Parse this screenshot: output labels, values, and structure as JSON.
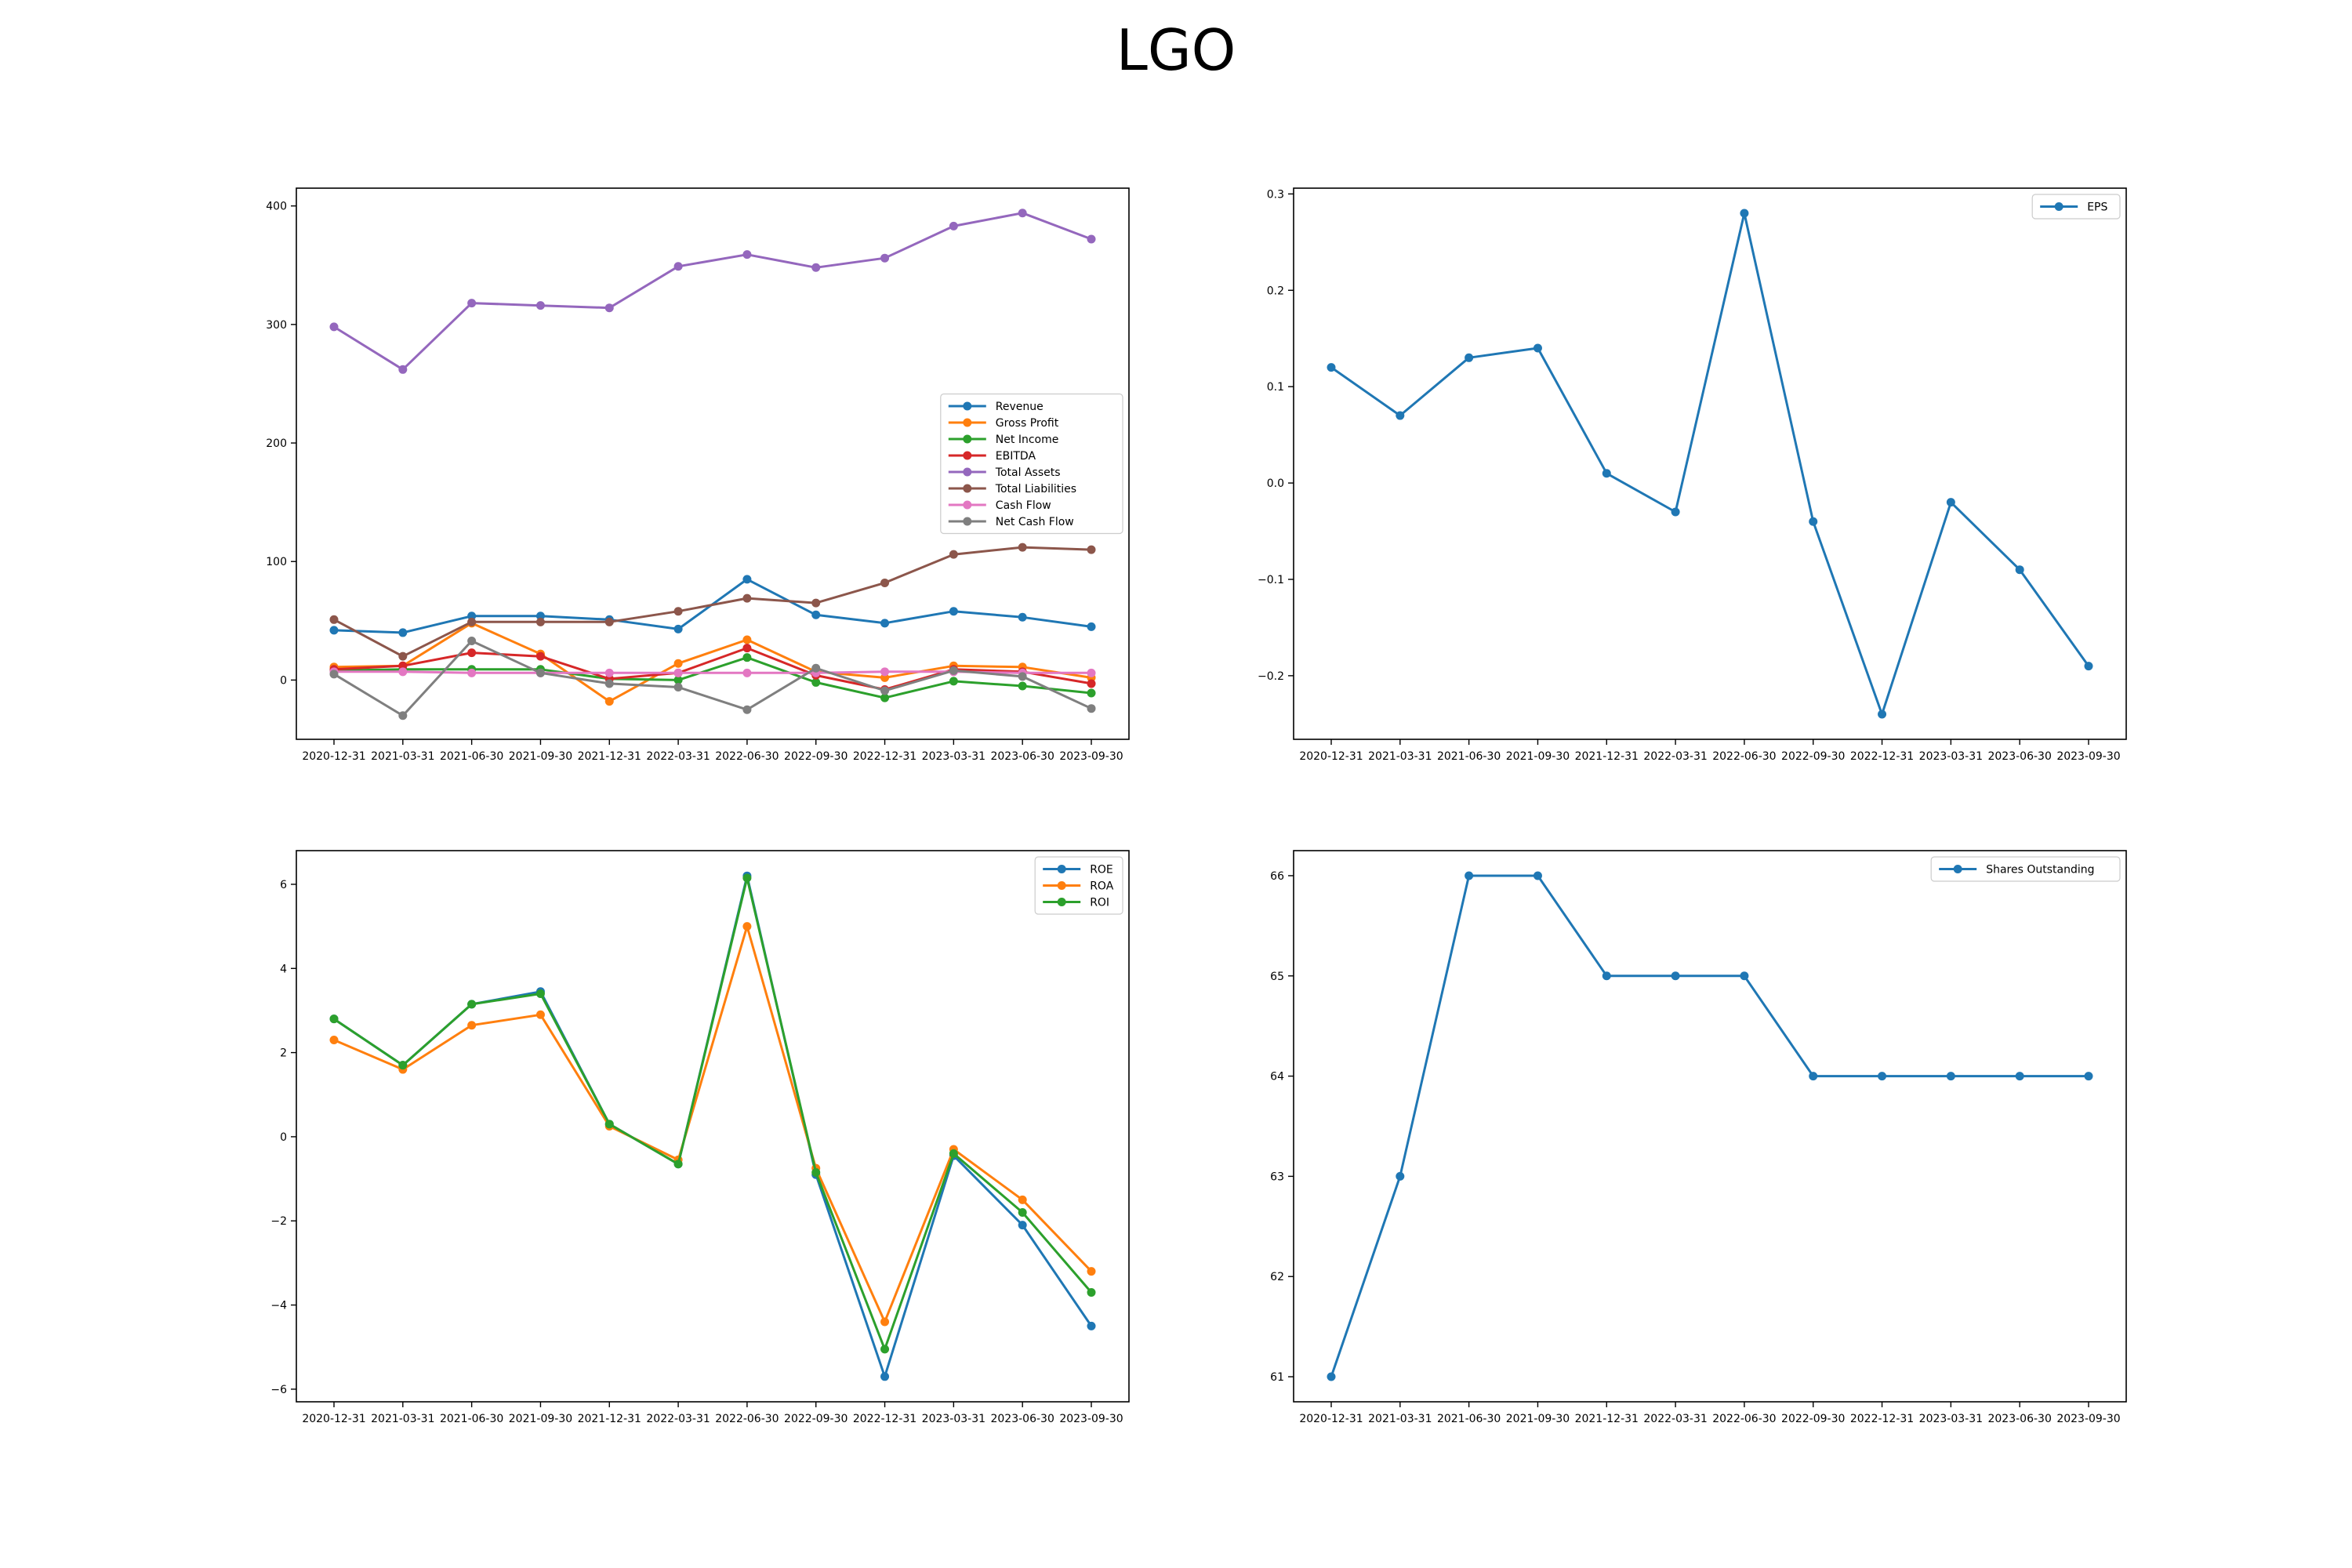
{
  "figure_title": "LGO",
  "chart_data": [
    {
      "type": "line",
      "x": [
        "2020-12-31",
        "2021-03-31",
        "2021-06-30",
        "2021-09-30",
        "2021-12-31",
        "2022-03-31",
        "2022-06-30",
        "2022-09-30",
        "2022-12-31",
        "2023-03-31",
        "2023-06-30",
        "2023-09-30"
      ],
      "ylim": [
        -50,
        415
      ],
      "yticks": [
        0,
        100,
        200,
        300,
        400
      ],
      "grid": false,
      "legend_position": "center-right",
      "series": [
        {
          "name": "Revenue",
          "color": "#1f77b4",
          "values": [
            42,
            40,
            54,
            54,
            51,
            43,
            85,
            55,
            48,
            58,
            53,
            45
          ]
        },
        {
          "name": "Gross Profit",
          "color": "#ff7f0e",
          "values": [
            11,
            12,
            48,
            22,
            -18,
            14,
            34,
            7,
            2,
            12,
            11,
            2
          ]
        },
        {
          "name": "Net Income",
          "color": "#2ca02c",
          "values": [
            8,
            9,
            9,
            9,
            1,
            0,
            19,
            -2,
            -15,
            -1,
            -5,
            -11
          ]
        },
        {
          "name": "EBITDA",
          "color": "#d62728",
          "values": [
            9,
            12,
            23,
            20,
            1,
            6,
            27,
            4,
            -8,
            9,
            7,
            -3
          ]
        },
        {
          "name": "Total Assets",
          "color": "#9467bd",
          "values": [
            298,
            262,
            318,
            316,
            314,
            349,
            359,
            348,
            356,
            383,
            394,
            372
          ]
        },
        {
          "name": "Total Liabilities",
          "color": "#8c564b",
          "values": [
            51,
            20,
            49,
            49,
            49,
            58,
            69,
            65,
            82,
            106,
            112,
            110
          ]
        },
        {
          "name": "Cash Flow",
          "color": "#e377c2",
          "values": [
            7,
            7,
            6,
            6,
            6,
            6,
            6,
            6,
            7,
            7,
            6,
            6
          ]
        },
        {
          "name": "Net Cash Flow",
          "color": "#7f7f7f",
          "values": [
            5,
            -30,
            33,
            6,
            -3,
            -6,
            -25,
            10,
            -9,
            8,
            3,
            -24
          ]
        }
      ]
    },
    {
      "type": "line",
      "x": [
        "2020-12-31",
        "2021-03-31",
        "2021-06-30",
        "2021-09-30",
        "2021-12-31",
        "2022-03-31",
        "2022-06-30",
        "2022-09-30",
        "2022-12-31",
        "2023-03-31",
        "2023-06-30",
        "2023-09-30"
      ],
      "ylim": [
        -0.266,
        0.306
      ],
      "yticks": [
        -0.2,
        -0.1,
        0.0,
        0.1,
        0.2,
        0.3
      ],
      "grid": false,
      "legend_position": "upper-right",
      "series": [
        {
          "name": "EPS",
          "color": "#1f77b4",
          "values": [
            0.12,
            0.07,
            0.13,
            0.14,
            0.01,
            -0.03,
            0.28,
            -0.04,
            -0.24,
            -0.02,
            -0.09,
            -0.19
          ]
        }
      ]
    },
    {
      "type": "line",
      "x": [
        "2020-12-31",
        "2021-03-31",
        "2021-06-30",
        "2021-09-30",
        "2021-12-31",
        "2022-03-31",
        "2022-06-30",
        "2022-09-30",
        "2022-12-31",
        "2023-03-31",
        "2023-06-30",
        "2023-09-30"
      ],
      "ylim": [
        -6.3,
        6.8
      ],
      "yticks": [
        -6,
        -4,
        -2,
        0,
        2,
        4,
        6
      ],
      "grid": false,
      "legend_position": "upper-right",
      "series": [
        {
          "name": "ROE",
          "color": "#1f77b4",
          "values": [
            2.8,
            1.7,
            3.15,
            3.45,
            0.3,
            -0.65,
            6.2,
            -0.9,
            -5.7,
            -0.45,
            -2.1,
            -4.5
          ]
        },
        {
          "name": "ROA",
          "color": "#ff7f0e",
          "values": [
            2.3,
            1.6,
            2.65,
            2.9,
            0.25,
            -0.55,
            5.0,
            -0.75,
            -4.4,
            -0.3,
            -1.5,
            -3.2
          ]
        },
        {
          "name": "ROI",
          "color": "#2ca02c",
          "values": [
            2.8,
            1.7,
            3.15,
            3.4,
            0.3,
            -0.65,
            6.15,
            -0.85,
            -5.05,
            -0.4,
            -1.8,
            -3.7
          ]
        }
      ]
    },
    {
      "type": "line",
      "x": [
        "2020-12-31",
        "2021-03-31",
        "2021-06-30",
        "2021-09-30",
        "2021-12-31",
        "2022-03-31",
        "2022-06-30",
        "2022-09-30",
        "2022-12-31",
        "2023-03-31",
        "2023-06-30",
        "2023-09-30"
      ],
      "ylim": [
        60.75,
        66.25
      ],
      "yticks": [
        61,
        62,
        63,
        64,
        65,
        66
      ],
      "grid": false,
      "legend_position": "upper-right",
      "series": [
        {
          "name": "Shares Outstanding",
          "color": "#1f77b4",
          "values": [
            61,
            63,
            66,
            66,
            65,
            65,
            65,
            64,
            64,
            64,
            64,
            64
          ]
        }
      ]
    }
  ]
}
